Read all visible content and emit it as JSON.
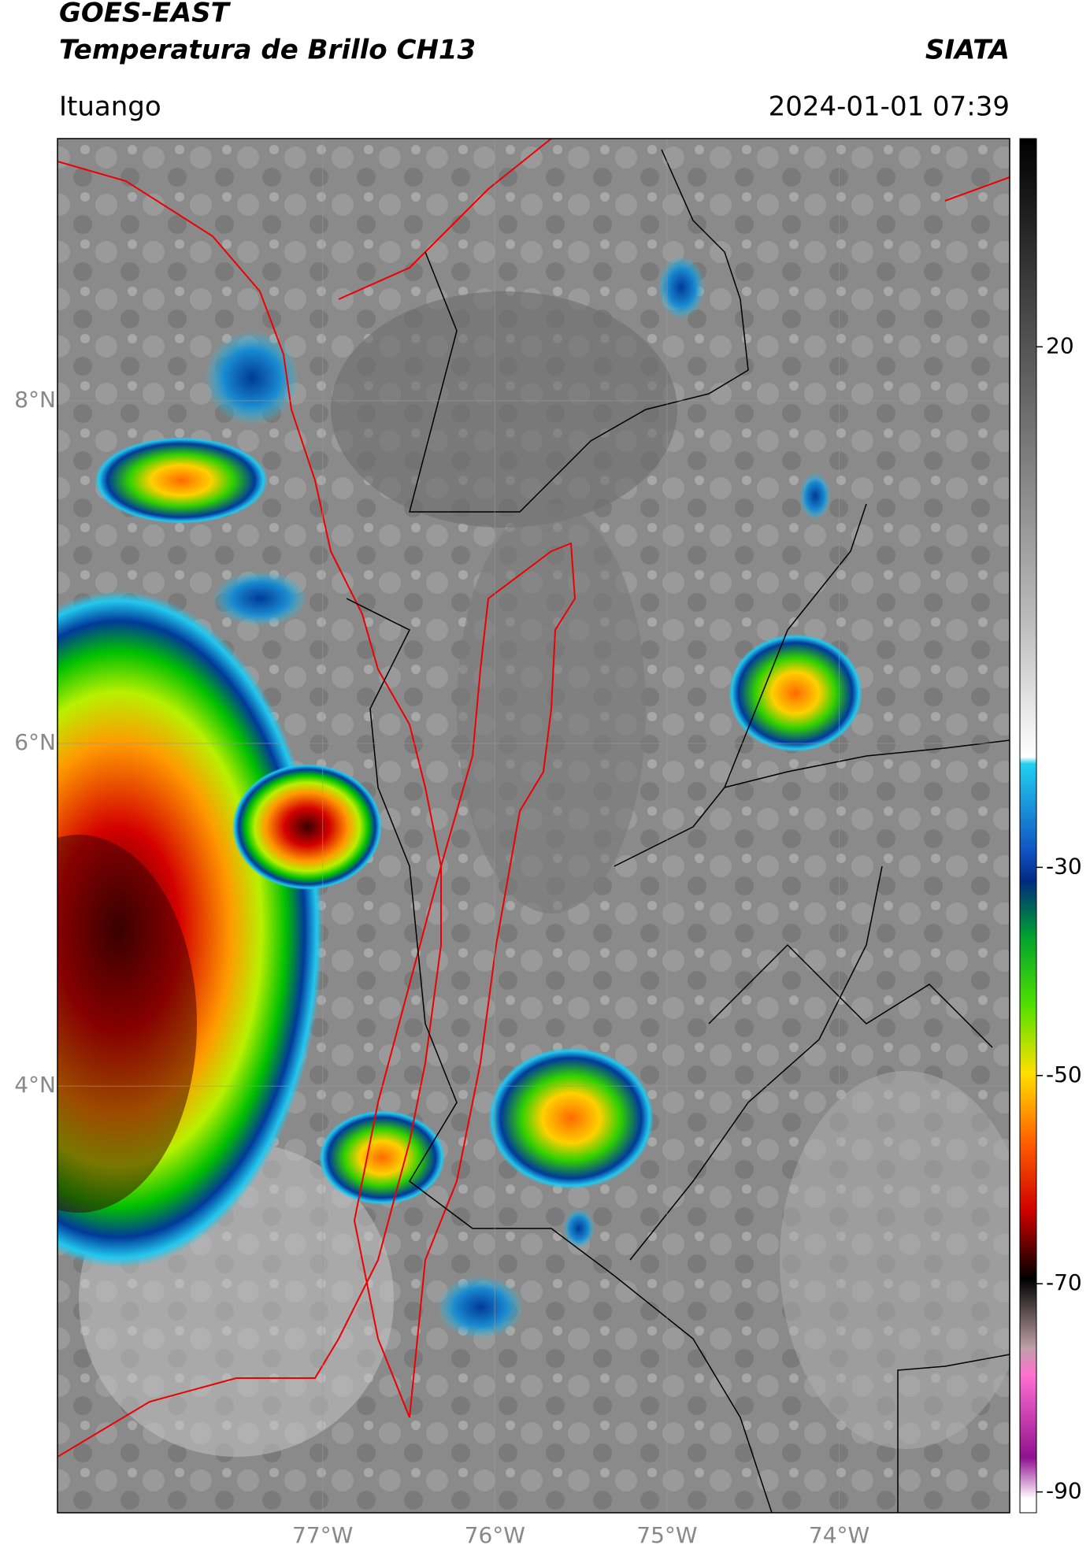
{
  "header": {
    "title": "GOES-EAST",
    "subtitle": "Temperatura de Brillo CH13",
    "source": "SIATA",
    "location": "Ituango",
    "datetime": "2024-01-01 07:39"
  },
  "map": {
    "xlim": [
      -78.54,
      -73.01
    ],
    "ylim": [
      1.51,
      9.53
    ],
    "xticks": [
      {
        "value": -77,
        "label": "77°W"
      },
      {
        "value": -76,
        "label": "76°W"
      },
      {
        "value": -75,
        "label": "75°W"
      },
      {
        "value": -74,
        "label": "74°W"
      }
    ],
    "yticks": [
      {
        "value": 8,
        "label": "8°N"
      },
      {
        "value": 6,
        "label": "6°N"
      },
      {
        "value": 4,
        "label": "4°N"
      }
    ],
    "grid": true
  },
  "colorbar": {
    "lim": [
      -92,
      40
    ],
    "ticks": [
      20,
      -30,
      -50,
      -70,
      -90
    ]
  }
}
